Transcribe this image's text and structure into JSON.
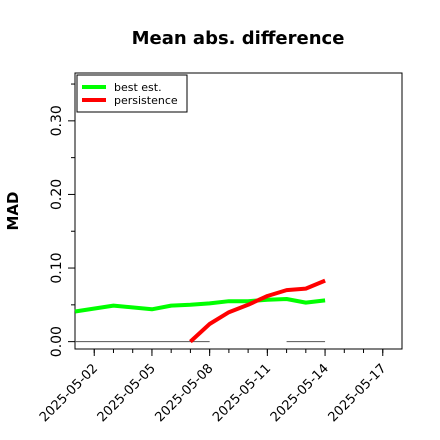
{
  "chart_data": {
    "type": "line",
    "title": "Mean abs. difference",
    "xlabel": "",
    "ylabel": "MAD",
    "xlim": [
      "2025-05-01",
      "2025-05-18"
    ],
    "ylim": [
      -0.01,
      0.365
    ],
    "xticks": [
      "2025-05-02",
      "2025-05-05",
      "2025-05-08",
      "2025-05-11",
      "2025-05-14",
      "2025-05-17"
    ],
    "yticks": [
      "0.00",
      "0.10",
      "0.20",
      "0.30"
    ],
    "ytick_values": [
      0.0,
      0.1,
      0.2,
      0.3
    ],
    "ytick_minor_values": [
      0.05,
      0.15,
      0.25,
      0.35
    ],
    "grid": false,
    "legend_position": "top-left",
    "series": [
      {
        "name": "best est.",
        "color": "#00ff00",
        "points": [
          {
            "x": "2025-05-01",
            "y": 0.041
          },
          {
            "x": "2025-05-03",
            "y": 0.049
          },
          {
            "x": "2025-05-05",
            "y": 0.044
          },
          {
            "x": "2025-05-06",
            "y": 0.049
          },
          {
            "x": "2025-05-07",
            "y": 0.05
          },
          {
            "x": "2025-05-08",
            "y": 0.052
          },
          {
            "x": "2025-05-09",
            "y": 0.055
          },
          {
            "x": "2025-05-10",
            "y": 0.055
          },
          {
            "x": "2025-05-11",
            "y": 0.057
          },
          {
            "x": "2025-05-12",
            "y": 0.058
          },
          {
            "x": "2025-05-13",
            "y": 0.053
          },
          {
            "x": "2025-05-14",
            "y": 0.056
          }
        ]
      },
      {
        "name": "persistence",
        "color": "#ff0000",
        "points": [
          {
            "x": "2025-05-07",
            "y": 0.0
          },
          {
            "x": "2025-05-08",
            "y": 0.024
          },
          {
            "x": "2025-05-09",
            "y": 0.04
          },
          {
            "x": "2025-05-10",
            "y": 0.05
          },
          {
            "x": "2025-05-11",
            "y": 0.062
          },
          {
            "x": "2025-05-12",
            "y": 0.07
          },
          {
            "x": "2025-05-13",
            "y": 0.072
          },
          {
            "x": "2025-05-14",
            "y": 0.083
          }
        ]
      }
    ],
    "baseline_segments": [
      {
        "from": "2025-05-01",
        "to": "2025-05-08",
        "y": 0.0,
        "color": "#555555"
      },
      {
        "from": "2025-05-12",
        "to": "2025-05-14",
        "y": 0.0,
        "color": "#555555"
      }
    ]
  }
}
